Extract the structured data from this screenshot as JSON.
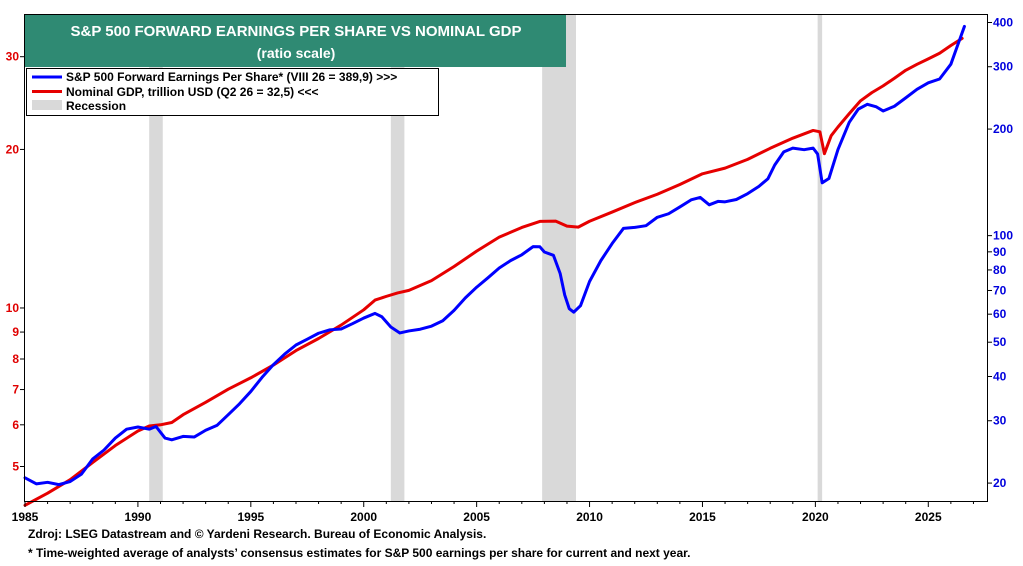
{
  "chart_data": {
    "type": "line",
    "title": "S&P 500 FORWARD EARNINGS PER SHARE VS NOMINAL GDP",
    "subtitle": "(ratio scale)",
    "x_range": [
      1985,
      2027.6
    ],
    "x_ticks": [
      "1985",
      "1990",
      "1995",
      "2000",
      "2005",
      "2010",
      "2015",
      "2020",
      "2025"
    ],
    "left_axis": {
      "scale": "log",
      "range": [
        4.3,
        36.0
      ],
      "ticks": [
        5,
        6,
        7,
        8,
        9,
        10,
        20,
        30
      ],
      "color": "#e00000"
    },
    "right_axis": {
      "scale": "log",
      "range": [
        17.8,
        420
      ],
      "ticks": [
        20,
        30,
        40,
        50,
        60,
        70,
        80,
        90,
        100,
        200,
        300,
        400
      ],
      "color": "#0000dd"
    },
    "legend_placement": "top-left",
    "series": [
      {
        "name": "S&P 500 Forward Earnings Per Share* (VIII 26 = 389,9) >>>",
        "axis": "right",
        "color": "#0000ff",
        "points": [
          [
            1985.0,
            20.7
          ],
          [
            1985.5,
            19.9
          ],
          [
            1986.0,
            20.1
          ],
          [
            1986.5,
            19.8
          ],
          [
            1987.0,
            20.2
          ],
          [
            1987.5,
            21.2
          ],
          [
            1988.0,
            23.4
          ],
          [
            1988.5,
            24.8
          ],
          [
            1989.0,
            26.8
          ],
          [
            1989.5,
            28.4
          ],
          [
            1990.0,
            28.8
          ],
          [
            1990.5,
            28.4
          ],
          [
            1990.8,
            28.9
          ],
          [
            1991.2,
            26.8
          ],
          [
            1991.5,
            26.5
          ],
          [
            1992.0,
            27.1
          ],
          [
            1992.5,
            27.0
          ],
          [
            1993.0,
            28.2
          ],
          [
            1993.5,
            29.1
          ],
          [
            1994.0,
            31.2
          ],
          [
            1994.5,
            33.5
          ],
          [
            1995.0,
            36.3
          ],
          [
            1995.5,
            39.8
          ],
          [
            1996.0,
            43.2
          ],
          [
            1996.5,
            46.3
          ],
          [
            1997.0,
            49.1
          ],
          [
            1997.5,
            51.0
          ],
          [
            1998.0,
            53.0
          ],
          [
            1998.5,
            54.2
          ],
          [
            1999.0,
            54.5
          ],
          [
            1999.5,
            56.4
          ],
          [
            2000.0,
            58.5
          ],
          [
            2000.5,
            60.3
          ],
          [
            2000.8,
            59.0
          ],
          [
            2001.2,
            55.2
          ],
          [
            2001.6,
            53.1
          ],
          [
            2002.0,
            53.8
          ],
          [
            2002.5,
            54.4
          ],
          [
            2003.0,
            55.5
          ],
          [
            2003.5,
            57.5
          ],
          [
            2004.0,
            61.5
          ],
          [
            2004.5,
            66.7
          ],
          [
            2005.0,
            71.5
          ],
          [
            2005.5,
            76.0
          ],
          [
            2006.0,
            81.0
          ],
          [
            2006.5,
            85.0
          ],
          [
            2007.0,
            88.3
          ],
          [
            2007.5,
            93.1
          ],
          [
            2007.8,
            93.0
          ],
          [
            2008.0,
            89.9
          ],
          [
            2008.4,
            88.0
          ],
          [
            2008.7,
            78.1
          ],
          [
            2008.9,
            68.0
          ],
          [
            2009.1,
            62.2
          ],
          [
            2009.3,
            60.8
          ],
          [
            2009.6,
            63.4
          ],
          [
            2010.0,
            74.2
          ],
          [
            2010.5,
            85.0
          ],
          [
            2011.0,
            95.0
          ],
          [
            2011.5,
            104.8
          ],
          [
            2012.0,
            105.5
          ],
          [
            2012.5,
            106.7
          ],
          [
            2013.0,
            112.7
          ],
          [
            2013.5,
            115.3
          ],
          [
            2014.0,
            120.5
          ],
          [
            2014.5,
            126.2
          ],
          [
            2014.9,
            128.2
          ],
          [
            2015.3,
            122.2
          ],
          [
            2015.7,
            125.0
          ],
          [
            2016.0,
            124.6
          ],
          [
            2016.5,
            126.5
          ],
          [
            2017.0,
            131.4
          ],
          [
            2017.5,
            137.8
          ],
          [
            2017.9,
            144.8
          ],
          [
            2018.2,
            158.3
          ],
          [
            2018.6,
            172.4
          ],
          [
            2019.0,
            176.7
          ],
          [
            2019.5,
            174.9
          ],
          [
            2019.9,
            176.7
          ],
          [
            2020.1,
            170.0
          ],
          [
            2020.3,
            141.0
          ],
          [
            2020.6,
            145.0
          ],
          [
            2021.0,
            175.0
          ],
          [
            2021.5,
            209.0
          ],
          [
            2021.9,
            227.7
          ],
          [
            2022.3,
            235.0
          ],
          [
            2022.7,
            231.1
          ],
          [
            2023.0,
            225.0
          ],
          [
            2023.5,
            232.0
          ],
          [
            2024.0,
            245.0
          ],
          [
            2024.5,
            259.0
          ],
          [
            2025.0,
            270.2
          ],
          [
            2025.5,
            277.0
          ],
          [
            2026.0,
            305.0
          ],
          [
            2026.3,
            345.0
          ],
          [
            2026.6,
            389.9
          ]
        ]
      },
      {
        "name": "Nominal GDP, trillion USD (Q2 26 = 32,5) <<<",
        "axis": "left",
        "color": "#e60000",
        "points": [
          [
            1985.0,
            4.22
          ],
          [
            1986.0,
            4.45
          ],
          [
            1987.0,
            4.72
          ],
          [
            1988.0,
            5.09
          ],
          [
            1989.0,
            5.48
          ],
          [
            1990.0,
            5.84
          ],
          [
            1990.5,
            5.97
          ],
          [
            1991.0,
            6.0
          ],
          [
            1991.5,
            6.06
          ],
          [
            1992.0,
            6.27
          ],
          [
            1993.0,
            6.62
          ],
          [
            1994.0,
            7.01
          ],
          [
            1995.0,
            7.37
          ],
          [
            1996.0,
            7.79
          ],
          [
            1997.0,
            8.3
          ],
          [
            1998.0,
            8.75
          ],
          [
            1999.0,
            9.28
          ],
          [
            2000.0,
            9.92
          ],
          [
            2000.5,
            10.35
          ],
          [
            2001.0,
            10.52
          ],
          [
            2001.5,
            10.68
          ],
          [
            2002.0,
            10.8
          ],
          [
            2003.0,
            11.27
          ],
          [
            2004.0,
            11.99
          ],
          [
            2005.0,
            12.82
          ],
          [
            2006.0,
            13.63
          ],
          [
            2007.0,
            14.22
          ],
          [
            2007.8,
            14.6
          ],
          [
            2008.5,
            14.62
          ],
          [
            2009.0,
            14.3
          ],
          [
            2009.5,
            14.24
          ],
          [
            2010.0,
            14.61
          ],
          [
            2011.0,
            15.21
          ],
          [
            2012.0,
            15.85
          ],
          [
            2013.0,
            16.44
          ],
          [
            2014.0,
            17.16
          ],
          [
            2015.0,
            17.98
          ],
          [
            2016.0,
            18.43
          ],
          [
            2017.0,
            19.15
          ],
          [
            2018.0,
            20.1
          ],
          [
            2019.0,
            21.01
          ],
          [
            2019.9,
            21.73
          ],
          [
            2020.2,
            21.6
          ],
          [
            2020.4,
            19.63
          ],
          [
            2020.7,
            21.24
          ],
          [
            2021.0,
            22.06
          ],
          [
            2021.5,
            23.39
          ],
          [
            2022.0,
            24.74
          ],
          [
            2022.5,
            25.64
          ],
          [
            2023.0,
            26.41
          ],
          [
            2023.5,
            27.3
          ],
          [
            2024.0,
            28.27
          ],
          [
            2024.5,
            29.02
          ],
          [
            2025.0,
            29.72
          ],
          [
            2025.5,
            30.46
          ],
          [
            2026.0,
            31.5
          ],
          [
            2026.5,
            32.5
          ]
        ]
      },
      {
        "name": "Recession",
        "color": "#d9d9d9",
        "periods": [
          [
            1990.5,
            1991.1
          ],
          [
            2001.2,
            2001.8
          ],
          [
            2007.9,
            2009.4
          ],
          [
            2020.1,
            2020.3
          ]
        ]
      }
    ]
  },
  "footer": {
    "source": "Zdroj: LSEG Datastream and © Yardeni Research.  Bureau of Economic Analysis.",
    "note": "* Time-weighted average of analysts’ consensus estimates for S&P 500 earnings per share for current and next year."
  }
}
